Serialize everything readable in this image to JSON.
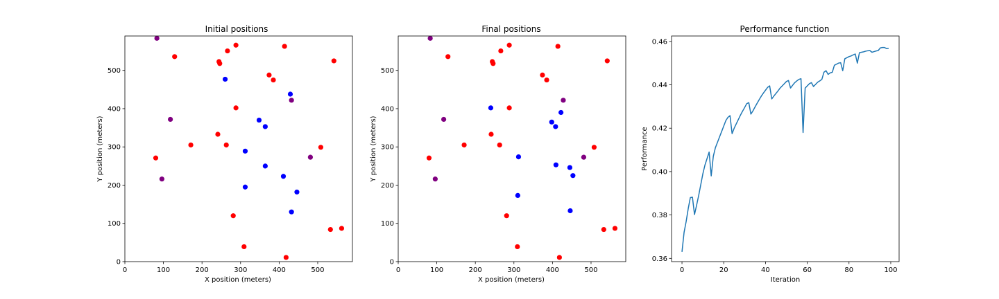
{
  "colors": {
    "red": "#ff0000",
    "blue": "#0000ff",
    "purple": "#800080",
    "line": "#1f77b4"
  },
  "chart_data": [
    {
      "type": "scatter",
      "title": "Initial positions",
      "xlabel": "X position (meters)",
      "ylabel": "Y position (meters)",
      "xlim": [
        0,
        590
      ],
      "ylim": [
        0,
        590
      ],
      "xticks": [
        0,
        100,
        200,
        300,
        400,
        500
      ],
      "yticks": [
        0,
        100,
        200,
        300,
        400,
        500
      ],
      "points": [
        {
          "x": 83,
          "y": 584,
          "color": "purple"
        },
        {
          "x": 129,
          "y": 536,
          "color": "red"
        },
        {
          "x": 266,
          "y": 551,
          "color": "red"
        },
        {
          "x": 288,
          "y": 566,
          "color": "red"
        },
        {
          "x": 414,
          "y": 563,
          "color": "red"
        },
        {
          "x": 542,
          "y": 525,
          "color": "red"
        },
        {
          "x": 244,
          "y": 523,
          "color": "red"
        },
        {
          "x": 246,
          "y": 518,
          "color": "red"
        },
        {
          "x": 260,
          "y": 477,
          "color": "blue"
        },
        {
          "x": 374,
          "y": 488,
          "color": "red"
        },
        {
          "x": 385,
          "y": 475,
          "color": "red"
        },
        {
          "x": 429,
          "y": 438,
          "color": "blue"
        },
        {
          "x": 432,
          "y": 422,
          "color": "purple"
        },
        {
          "x": 288,
          "y": 402,
          "color": "red"
        },
        {
          "x": 118,
          "y": 372,
          "color": "purple"
        },
        {
          "x": 348,
          "y": 370,
          "color": "blue"
        },
        {
          "x": 364,
          "y": 353,
          "color": "blue"
        },
        {
          "x": 241,
          "y": 333,
          "color": "red"
        },
        {
          "x": 171,
          "y": 305,
          "color": "red"
        },
        {
          "x": 263,
          "y": 305,
          "color": "red"
        },
        {
          "x": 508,
          "y": 299,
          "color": "red"
        },
        {
          "x": 312,
          "y": 289,
          "color": "blue"
        },
        {
          "x": 80,
          "y": 271,
          "color": "red"
        },
        {
          "x": 481,
          "y": 273,
          "color": "purple"
        },
        {
          "x": 364,
          "y": 250,
          "color": "blue"
        },
        {
          "x": 411,
          "y": 223,
          "color": "blue"
        },
        {
          "x": 96,
          "y": 216,
          "color": "purple"
        },
        {
          "x": 312,
          "y": 195,
          "color": "blue"
        },
        {
          "x": 446,
          "y": 182,
          "color": "blue"
        },
        {
          "x": 432,
          "y": 130,
          "color": "blue"
        },
        {
          "x": 281,
          "y": 120,
          "color": "red"
        },
        {
          "x": 533,
          "y": 84,
          "color": "red"
        },
        {
          "x": 562,
          "y": 87,
          "color": "red"
        },
        {
          "x": 309,
          "y": 39,
          "color": "red"
        },
        {
          "x": 418,
          "y": 11,
          "color": "red"
        }
      ]
    },
    {
      "type": "scatter",
      "title": "Final positions",
      "xlabel": "X position (meters)",
      "ylabel": "Y position (meters)",
      "xlim": [
        0,
        590
      ],
      "ylim": [
        0,
        590
      ],
      "xticks": [
        0,
        100,
        200,
        300,
        400,
        500
      ],
      "yticks": [
        0,
        100,
        200,
        300,
        400,
        500
      ],
      "points": [
        {
          "x": 83,
          "y": 584,
          "color": "purple"
        },
        {
          "x": 129,
          "y": 536,
          "color": "red"
        },
        {
          "x": 266,
          "y": 551,
          "color": "red"
        },
        {
          "x": 288,
          "y": 566,
          "color": "red"
        },
        {
          "x": 414,
          "y": 563,
          "color": "red"
        },
        {
          "x": 542,
          "y": 525,
          "color": "red"
        },
        {
          "x": 244,
          "y": 523,
          "color": "red"
        },
        {
          "x": 246,
          "y": 518,
          "color": "red"
        },
        {
          "x": 374,
          "y": 488,
          "color": "red"
        },
        {
          "x": 385,
          "y": 475,
          "color": "red"
        },
        {
          "x": 428,
          "y": 422,
          "color": "purple"
        },
        {
          "x": 240,
          "y": 402,
          "color": "blue"
        },
        {
          "x": 288,
          "y": 402,
          "color": "red"
        },
        {
          "x": 422,
          "y": 390,
          "color": "blue"
        },
        {
          "x": 118,
          "y": 372,
          "color": "purple"
        },
        {
          "x": 398,
          "y": 365,
          "color": "blue"
        },
        {
          "x": 408,
          "y": 353,
          "color": "blue"
        },
        {
          "x": 241,
          "y": 333,
          "color": "red"
        },
        {
          "x": 171,
          "y": 305,
          "color": "red"
        },
        {
          "x": 263,
          "y": 305,
          "color": "red"
        },
        {
          "x": 508,
          "y": 299,
          "color": "red"
        },
        {
          "x": 312,
          "y": 274,
          "color": "blue"
        },
        {
          "x": 80,
          "y": 271,
          "color": "red"
        },
        {
          "x": 481,
          "y": 273,
          "color": "purple"
        },
        {
          "x": 409,
          "y": 253,
          "color": "blue"
        },
        {
          "x": 445,
          "y": 246,
          "color": "blue"
        },
        {
          "x": 453,
          "y": 225,
          "color": "blue"
        },
        {
          "x": 96,
          "y": 216,
          "color": "purple"
        },
        {
          "x": 310,
          "y": 173,
          "color": "blue"
        },
        {
          "x": 446,
          "y": 133,
          "color": "blue"
        },
        {
          "x": 281,
          "y": 120,
          "color": "red"
        },
        {
          "x": 533,
          "y": 84,
          "color": "red"
        },
        {
          "x": 562,
          "y": 87,
          "color": "red"
        },
        {
          "x": 309,
          "y": 39,
          "color": "red"
        },
        {
          "x": 418,
          "y": 11,
          "color": "red"
        }
      ]
    },
    {
      "type": "line",
      "title": "Performance function",
      "xlabel": "Iteration",
      "ylabel": "Performance",
      "xlim": [
        -5,
        104
      ],
      "ylim": [
        0.3585,
        0.4625
      ],
      "xticks": [
        0,
        20,
        40,
        60,
        80,
        100
      ],
      "yticks": [
        0.36,
        0.38,
        0.4,
        0.42,
        0.44,
        0.46
      ],
      "ytick_labels": [
        "0.36",
        "0.38",
        "0.40",
        "0.42",
        "0.44",
        "0.46"
      ],
      "series": [
        {
          "x": [
            0,
            1,
            2,
            3,
            4,
            5,
            6,
            7,
            8,
            9,
            10,
            11,
            12,
            13,
            14,
            15,
            16,
            17,
            18,
            19,
            20,
            21,
            22,
            23,
            24,
            25,
            26,
            27,
            28,
            29,
            30,
            31,
            32,
            33,
            34,
            35,
            36,
            37,
            38,
            39,
            40,
            41,
            42,
            43,
            44,
            45,
            46,
            47,
            48,
            49,
            50,
            51,
            52,
            53,
            54,
            55,
            56,
            57,
            58,
            59,
            60,
            61,
            62,
            63,
            64,
            65,
            66,
            67,
            68,
            69,
            70,
            71,
            72,
            73,
            74,
            75,
            76,
            77,
            78,
            79,
            80,
            81,
            82,
            83,
            84,
            85,
            86,
            87,
            88,
            89,
            90,
            91,
            92,
            93,
            94,
            95,
            96,
            97,
            98,
            99
          ],
          "values": [
            0.363,
            0.372,
            0.377,
            0.383,
            0.388,
            0.3882,
            0.3802,
            0.3845,
            0.389,
            0.394,
            0.399,
            0.403,
            0.406,
            0.409,
            0.398,
            0.407,
            0.411,
            0.4135,
            0.416,
            0.4185,
            0.421,
            0.4235,
            0.425,
            0.4258,
            0.4175,
            0.42,
            0.422,
            0.424,
            0.426,
            0.4278,
            0.4295,
            0.4313,
            0.4318,
            0.4265,
            0.428,
            0.4298,
            0.4315,
            0.4332,
            0.4348,
            0.4362,
            0.4375,
            0.4388,
            0.4395,
            0.4335,
            0.4348,
            0.436,
            0.4372,
            0.4385,
            0.4395,
            0.4405,
            0.4415,
            0.442,
            0.4385,
            0.4398,
            0.441,
            0.4418,
            0.4425,
            0.4428,
            0.418,
            0.4385,
            0.4395,
            0.4405,
            0.441,
            0.4392,
            0.4402,
            0.4412,
            0.4418,
            0.4425,
            0.4458,
            0.4465,
            0.4448,
            0.4455,
            0.4458,
            0.449,
            0.4495,
            0.45,
            0.4502,
            0.4465,
            0.452,
            0.4525,
            0.453,
            0.4533,
            0.4538,
            0.4542,
            0.45,
            0.4548,
            0.455,
            0.4552,
            0.4555,
            0.4557,
            0.4558,
            0.455,
            0.4553,
            0.4556,
            0.4558,
            0.457,
            0.4572,
            0.4572,
            0.4567,
            0.4568
          ]
        }
      ]
    }
  ]
}
